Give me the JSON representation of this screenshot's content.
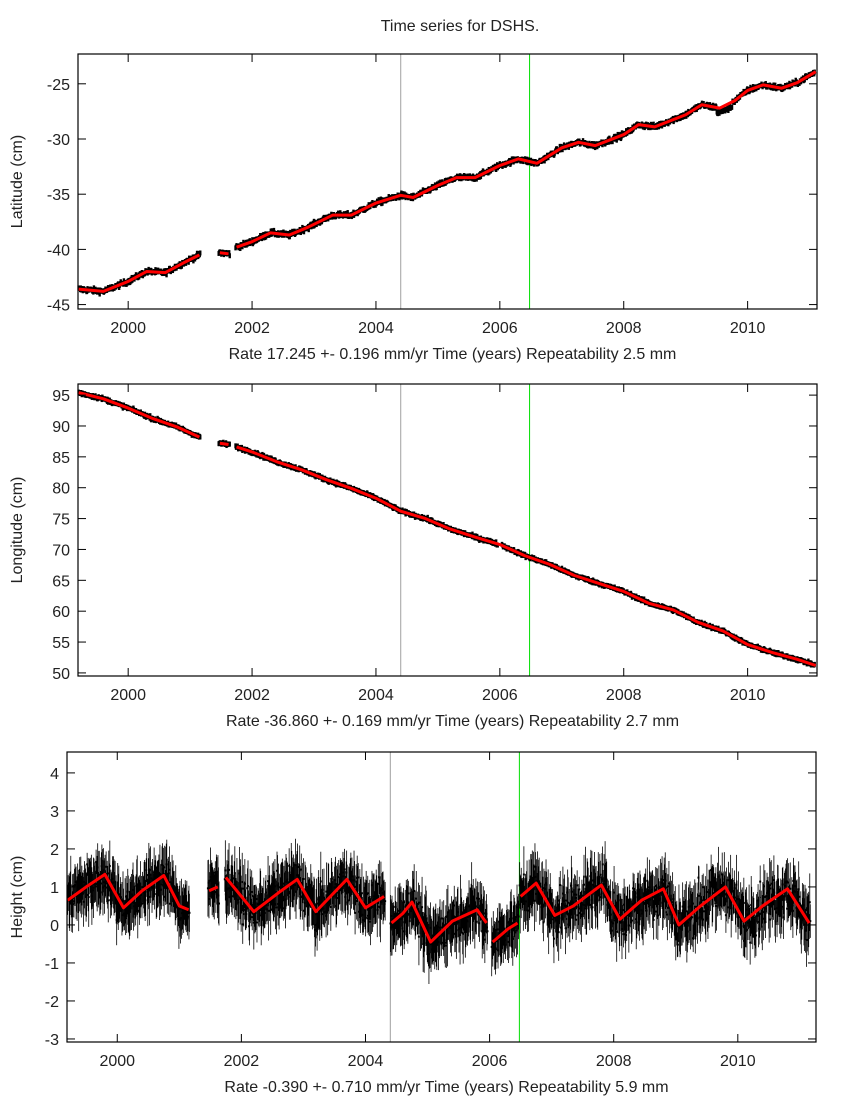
{
  "chart_data": {
    "type": "scatter",
    "title": "Time series for DSHS.",
    "colors": {
      "observations": "#000000",
      "model": "#ff0000",
      "event_line_1": "#a0a0a0",
      "event_line_2": "#00dd00"
    },
    "event_lines": [
      2004.4,
      2006.48
    ],
    "observation_gaps": [
      [
        2001.17,
        2001.46
      ],
      [
        2001.64,
        2001.73
      ]
    ],
    "panels": [
      {
        "name": "latitude",
        "ylabel": "Latitude (cm)",
        "xlabel_parts": [
          "Rate 17.245 +- 0.196 mm/yr",
          "Time (years)",
          "Repeatability 2.5 mm"
        ],
        "xlim": [
          1999.19,
          2011.12
        ],
        "ylim": [
          -45.4,
          -22.3
        ],
        "yticks": [
          -45,
          -40,
          -35,
          -30,
          -25
        ],
        "xticks": [
          2000,
          2002,
          2004,
          2006,
          2008,
          2010
        ],
        "noise_cm": 0.25,
        "model": [
          [
            [
              1999.2,
              -43.6
            ],
            [
              1999.6,
              -43.8
            ],
            [
              2000.0,
              -42.9
            ],
            [
              2000.3,
              -42.0
            ],
            [
              2000.6,
              -42.1
            ],
            [
              2000.9,
              -41.2
            ],
            [
              2001.15,
              -40.5
            ]
          ],
          [
            [
              2001.48,
              -40.3
            ],
            [
              2001.62,
              -40.4
            ]
          ],
          [
            [
              2001.75,
              -39.8
            ],
            [
              2002.0,
              -39.3
            ],
            [
              2002.3,
              -38.5
            ],
            [
              2002.6,
              -38.7
            ],
            [
              2002.9,
              -38.0
            ],
            [
              2003.3,
              -36.9
            ],
            [
              2003.6,
              -36.9
            ],
            [
              2004.0,
              -35.8
            ],
            [
              2004.4,
              -35.1
            ],
            [
              2004.6,
              -35.3
            ],
            [
              2005.0,
              -34.2
            ],
            [
              2005.3,
              -33.5
            ],
            [
              2005.6,
              -33.5
            ],
            [
              2006.0,
              -32.4
            ],
            [
              2006.3,
              -31.8
            ],
            [
              2006.6,
              -32.2
            ],
            [
              2007.0,
              -30.8
            ],
            [
              2007.27,
              -30.3
            ],
            [
              2007.54,
              -30.6
            ],
            [
              2008.0,
              -29.6
            ],
            [
              2008.24,
              -28.7
            ],
            [
              2008.5,
              -28.9
            ],
            [
              2009.0,
              -27.8
            ],
            [
              2009.26,
              -26.9
            ],
            [
              2009.55,
              -27.2
            ],
            [
              2009.8,
              -26.5
            ],
            [
              2010.0,
              -25.6
            ],
            [
              2010.25,
              -25.1
            ],
            [
              2010.55,
              -25.4
            ],
            [
              2010.8,
              -24.9
            ],
            [
              2011.1,
              -23.9
            ]
          ]
        ]
      },
      {
        "name": "longitude",
        "ylabel": "Longitude (cm)",
        "xlabel_parts": [
          "Rate -36.860 +- 0.169 mm/yr",
          "Time (years)",
          "Repeatability 2.7 mm"
        ],
        "xlim": [
          1999.19,
          2011.12
        ],
        "ylim": [
          49.5,
          96.8
        ],
        "yticks": [
          50,
          55,
          60,
          65,
          70,
          75,
          80,
          85,
          90,
          95
        ],
        "xticks": [
          2000,
          2002,
          2004,
          2006,
          2008,
          2010
        ],
        "noise_cm": 0.3,
        "model": [
          [
            [
              1999.2,
              95.4
            ],
            [
              1999.6,
              94.4
            ],
            [
              2000.0,
              92.9
            ],
            [
              2000.4,
              91.2
            ],
            [
              2000.8,
              89.8
            ],
            [
              2001.15,
              88.2
            ]
          ],
          [
            [
              2001.48,
              87.2
            ],
            [
              2001.62,
              87.0
            ]
          ],
          [
            [
              2001.75,
              86.6
            ],
            [
              2002.0,
              85.8
            ],
            [
              2002.4,
              84.2
            ],
            [
              2002.8,
              82.9
            ],
            [
              2003.2,
              81.3
            ],
            [
              2003.6,
              79.9
            ],
            [
              2004.0,
              78.3
            ],
            [
              2004.4,
              76.2
            ],
            [
              2004.8,
              75.0
            ],
            [
              2005.2,
              73.3
            ],
            [
              2005.6,
              72.0
            ],
            [
              2006.0,
              70.8
            ],
            [
              2006.4,
              69.0
            ],
            [
              2006.8,
              67.6
            ],
            [
              2007.2,
              65.8
            ],
            [
              2007.6,
              64.5
            ],
            [
              2008.0,
              63.2
            ],
            [
              2008.4,
              61.3
            ],
            [
              2008.8,
              60.2
            ],
            [
              2009.2,
              58.2
            ],
            [
              2009.6,
              56.8
            ],
            [
              2010.0,
              54.6
            ],
            [
              2010.4,
              53.3
            ],
            [
              2010.8,
              52.2
            ],
            [
              2011.1,
              51.2
            ]
          ]
        ]
      },
      {
        "name": "height",
        "ylabel": "Height (cm)",
        "xlabel_parts": [
          "Rate -0.390 +- 0.710 mm/yr",
          "Time (years)",
          "Repeatability 5.9 mm"
        ],
        "xlim": [
          1999.19,
          2011.26
        ],
        "ylim": [
          -3.08,
          4.55
        ],
        "yticks": [
          -3,
          -2,
          -1,
          0,
          1,
          2,
          3,
          4
        ],
        "xticks": [
          2000,
          2002,
          2004,
          2006,
          2008,
          2010
        ],
        "noise_cm": 0.55,
        "model": [
          [
            [
              1999.2,
              0.65
            ],
            [
              1999.5,
              1.0
            ],
            [
              1999.8,
              1.33
            ],
            [
              2000.1,
              0.45
            ],
            [
              2000.4,
              0.9
            ],
            [
              2000.75,
              1.3
            ],
            [
              2001.0,
              0.5
            ],
            [
              2001.15,
              0.4
            ]
          ],
          [
            [
              2001.48,
              0.9
            ],
            [
              2001.62,
              1.0
            ]
          ],
          [
            [
              2001.75,
              1.25
            ],
            [
              2002.2,
              0.35
            ],
            [
              2002.6,
              0.85
            ],
            [
              2002.9,
              1.2
            ],
            [
              2003.2,
              0.35
            ],
            [
              2003.7,
              1.2
            ],
            [
              2004.0,
              0.45
            ],
            [
              2004.3,
              0.75
            ]
          ],
          [
            [
              2004.42,
              0.05
            ],
            [
              2004.6,
              0.3
            ],
            [
              2004.75,
              0.6
            ],
            [
              2005.05,
              -0.45
            ],
            [
              2005.4,
              0.1
            ],
            [
              2005.8,
              0.4
            ],
            [
              2005.95,
              0.05
            ]
          ],
          [
            [
              2006.05,
              -0.45
            ],
            [
              2006.3,
              -0.1
            ],
            [
              2006.45,
              0.05
            ]
          ],
          [
            [
              2006.5,
              0.75
            ],
            [
              2006.75,
              1.1
            ],
            [
              2007.05,
              0.25
            ],
            [
              2007.35,
              0.5
            ],
            [
              2007.8,
              1.05
            ],
            [
              2008.1,
              0.15
            ],
            [
              2008.45,
              0.65
            ],
            [
              2008.8,
              0.95
            ],
            [
              2009.05,
              0.0
            ],
            [
              2009.4,
              0.5
            ],
            [
              2009.8,
              1.0
            ],
            [
              2010.1,
              0.1
            ],
            [
              2010.4,
              0.5
            ],
            [
              2010.8,
              0.95
            ],
            [
              2011.15,
              0.05
            ]
          ]
        ]
      }
    ]
  }
}
